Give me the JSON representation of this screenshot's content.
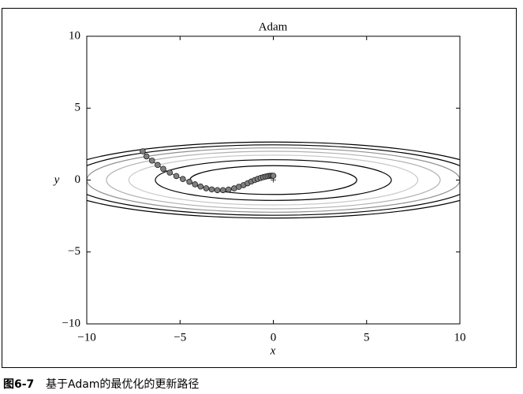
{
  "chart_data": {
    "type": "scatter",
    "title": "Adam",
    "x_label": "x",
    "y_label": "y",
    "xlim": [
      -10,
      10
    ],
    "ylim": [
      -10,
      10
    ],
    "xticks": [
      {
        "value": -10,
        "label": "−10"
      },
      {
        "value": -5,
        "label": "−5"
      },
      0,
      5,
      10
    ],
    "yticks": [
      {
        "value": -10,
        "label": "−10"
      },
      {
        "value": -5,
        "label": "−5"
      },
      0,
      5,
      10
    ],
    "contour_levels": [
      1,
      2,
      3,
      4,
      5,
      6,
      7
    ],
    "contour_colors": [
      "#000000",
      "#000000",
      "#c8c8c8",
      "#b0b0b0",
      "#909090",
      "#000000",
      "#000000"
    ],
    "target": {
      "x": 0,
      "y": 0
    },
    "series": [
      {
        "color": "#808080",
        "x": [
          -7.0,
          -6.8,
          -6.5,
          -6.2,
          -5.9,
          -5.55,
          -5.2,
          -4.85,
          -4.5,
          -4.2,
          -3.9,
          -3.6,
          -3.3,
          -3.0,
          -2.7,
          -2.4,
          -2.1,
          -1.85,
          -1.6,
          -1.38,
          -1.18,
          -1.0,
          -0.84,
          -0.68,
          -0.54,
          -0.42,
          -0.31,
          -0.21,
          -0.12,
          -0.05,
          0
        ],
        "y": [
          2.0,
          1.65,
          1.35,
          1.05,
          0.78,
          0.52,
          0.28,
          0.07,
          -0.12,
          -0.3,
          -0.45,
          -0.57,
          -0.65,
          -0.7,
          -0.7,
          -0.66,
          -0.58,
          -0.47,
          -0.35,
          -0.22,
          -0.1,
          0.0,
          0.08,
          0.15,
          0.2,
          0.24,
          0.27,
          0.29,
          0.3,
          0.3,
          0.3
        ]
      }
    ]
  },
  "caption": {
    "number": "图6-7",
    "text": "基于Adam的最优化的更新路径"
  }
}
